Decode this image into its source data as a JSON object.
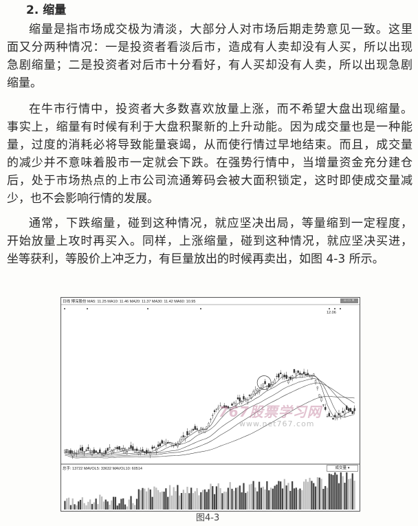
{
  "section_title": "2. 缩量",
  "paragraphs": [
    {
      "lines": [
        "缩量是指市场成交极为清淡，大部分人对市场后期走势意见一致。这里",
        "面又分两种情况：一是投资者看淡后市，造成有人卖却没有人买，所以出现",
        "急剧缩量；二是投资者对后市十分看好，有人买却没有人卖，所以出现急剧",
        "缩量。"
      ]
    },
    {
      "lines": [
        "在牛市行情中，投资者大多数喜欢放量上涨，而不希望大盘出现缩量。",
        "事实上，缩量有时候有利于大盘积聚新的上升动能。因为成交量也是一种能",
        "量，过度的消耗必将导致能量衰竭，从而使行情过早地结束。而且，成交量",
        "的减少并不意味着股市一定就会下跌。在强势行情中，当增量资金充分建仓",
        "后，处于市场热点的上市公司流通筹码会被大面积锁定，这时即使成交量减",
        "少，也不会影响行情的发展。"
      ]
    },
    {
      "lines": [
        "通常，下跌缩量，碰到这种情况，就应坚决出局，等量缩到一定程度，",
        "开始放量上攻时再买入。同样，上涨缩量，碰到这种情况，就应坚决买进，",
        "坐等获利，等股价上冲乏力，有巨量放出的时候再卖出，如图 4-3 所示。"
      ]
    }
  ],
  "figure": {
    "price_header": "日线  博深股份  MA5: 11.25  MA10: 11.46  MA20: 11.37  MA30: 11.42  MA60: 10.95",
    "high_label": "12.06",
    "low_label": "4.55",
    "volume_header": "总手: 13722  MAVOL5: 33632  MAVOL10: 60514",
    "volume_selector": "成交量 ▾",
    "window_buttons": "▫ ▭ ×",
    "watermark_title": "767股票学习网",
    "watermark_url": "www.net767.com",
    "caption": "图4-3"
  }
}
